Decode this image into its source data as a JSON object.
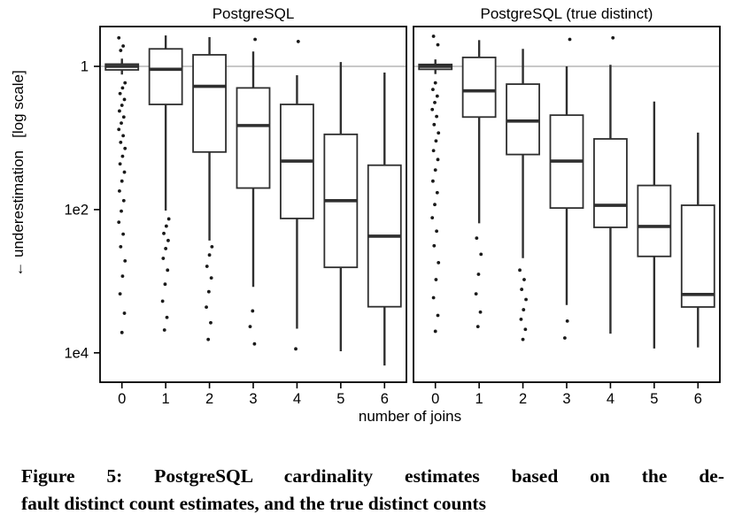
{
  "figure": {
    "caption_line1": "Figure 5: PostgreSQL cardinality estimates based on the de-",
    "caption_line2": "fault distinct count estimates, and the true distinct counts"
  },
  "chart_data": {
    "type": "boxplot",
    "title": "",
    "xlabel": "number of joins",
    "ylabel": "← underestimation   [log scale]",
    "x_categories": [
      "0",
      "1",
      "2",
      "3",
      "4",
      "5",
      "6"
    ],
    "y_scale": "log10 underestimation factor, increasing downward",
    "y_domain_log10": [
      -0.556,
      4.41
    ],
    "y_ticks": [
      {
        "label": "1",
        "value": 1
      },
      {
        "label": "1e2",
        "value": 100
      },
      {
        "label": "1e4",
        "value": 10000
      }
    ],
    "gridline_values": [
      1
    ],
    "legend": "none",
    "colors": {
      "box_stroke": "#2f2f2f",
      "median": "#2f2f2f",
      "outlier": "#1a1a1a",
      "gridline": "#c8c8c8",
      "panel_border": "#000000",
      "background": "#ffffff"
    },
    "panels": [
      {
        "title": "PostgreSQL",
        "boxes": [
          {
            "x": "0",
            "whisker_low": 0.78,
            "q1": 0.93,
            "median": 1.0,
            "q3": 1.12,
            "whisker_high": 1.3,
            "outliers": [
              0.4,
              0.52,
              0.6,
              1.7,
              2.0,
              2.4,
              2.9,
              3.5,
              4.2,
              5.1,
              6.2,
              7.6,
              9.3,
              11.5,
              14,
              18,
              23,
              30,
              40,
              55,
              75,
              105,
              150,
              220,
              330,
              520,
              850,
              1500,
              2800,
              5200
            ]
          },
          {
            "x": "1",
            "whisker_low": 0.37,
            "q1": 0.57,
            "median": 1.1,
            "q3": 3.4,
            "whisker_high": 103,
            "outliers": [
              135,
              170,
              215,
              270,
              350,
              480,
              700,
              1100,
              1900,
              3200,
              4800
            ]
          },
          {
            "x": "2",
            "whisker_low": 0.39,
            "q1": 0.69,
            "median": 1.9,
            "q3": 15.7,
            "whisker_high": 270,
            "outliers": [
              330,
              430,
              620,
              900,
              1400,
              2300,
              3800,
              6500
            ]
          },
          {
            "x": "3",
            "whisker_low": 0.62,
            "q1": 2.0,
            "median": 6.7,
            "q3": 50,
            "whisker_high": 1200,
            "outliers": [
              0.42,
              2600,
              4300,
              7500
            ]
          },
          {
            "x": "4",
            "whisker_low": 1.33,
            "q1": 3.4,
            "median": 21,
            "q3": 133,
            "whisker_high": 4600,
            "outliers": [
              0.45,
              8800
            ]
          },
          {
            "x": "5",
            "whisker_low": 0.87,
            "q1": 8.9,
            "median": 75,
            "q3": 640,
            "whisker_high": 9500,
            "outliers": []
          },
          {
            "x": "6",
            "whisker_low": 1.22,
            "q1": 24,
            "median": 235,
            "q3": 2270,
            "whisker_high": 15000,
            "outliers": []
          }
        ]
      },
      {
        "title": "PostgreSQL (true distinct)",
        "boxes": [
          {
            "x": "0",
            "whisker_low": 0.8,
            "q1": 0.94,
            "median": 1.0,
            "q3": 1.1,
            "whisker_high": 1.28,
            "outliers": [
              0.38,
              0.5,
              1.7,
              2.1,
              2.6,
              3.2,
              4.0,
              5.0,
              6.5,
              8.5,
              11,
              15,
              20,
              28,
              40,
              58,
              85,
              130,
              200,
              320,
              550,
              950,
              1700,
              3000,
              5000
            ]
          },
          {
            "x": "1",
            "whisker_low": 0.43,
            "q1": 0.75,
            "median": 2.2,
            "q3": 5.1,
            "whisker_high": 155,
            "outliers": [
              250,
              420,
              800,
              1500,
              2700,
              4300
            ]
          },
          {
            "x": "2",
            "whisker_low": 0.57,
            "q1": 1.77,
            "median": 5.8,
            "q3": 17,
            "whisker_high": 475,
            "outliers": [
              700,
              950,
              1300,
              1800,
              2500,
              3400,
              4700,
              6500
            ]
          },
          {
            "x": "3",
            "whisker_low": 1.0,
            "q1": 4.8,
            "median": 21,
            "q3": 95,
            "whisker_high": 2150,
            "outliers": [
              0.42,
              3600,
              6200
            ]
          },
          {
            "x": "4",
            "whisker_low": 0.95,
            "q1": 10.3,
            "median": 87,
            "q3": 177,
            "whisker_high": 5400,
            "outliers": [
              0.4
            ]
          },
          {
            "x": "5",
            "whisker_low": 3.1,
            "q1": 46,
            "median": 172,
            "q3": 450,
            "whisker_high": 8700,
            "outliers": []
          },
          {
            "x": "6",
            "whisker_low": 8.4,
            "q1": 87,
            "median": 1530,
            "q3": 2290,
            "whisker_high": 8400,
            "outliers": []
          }
        ]
      }
    ]
  }
}
